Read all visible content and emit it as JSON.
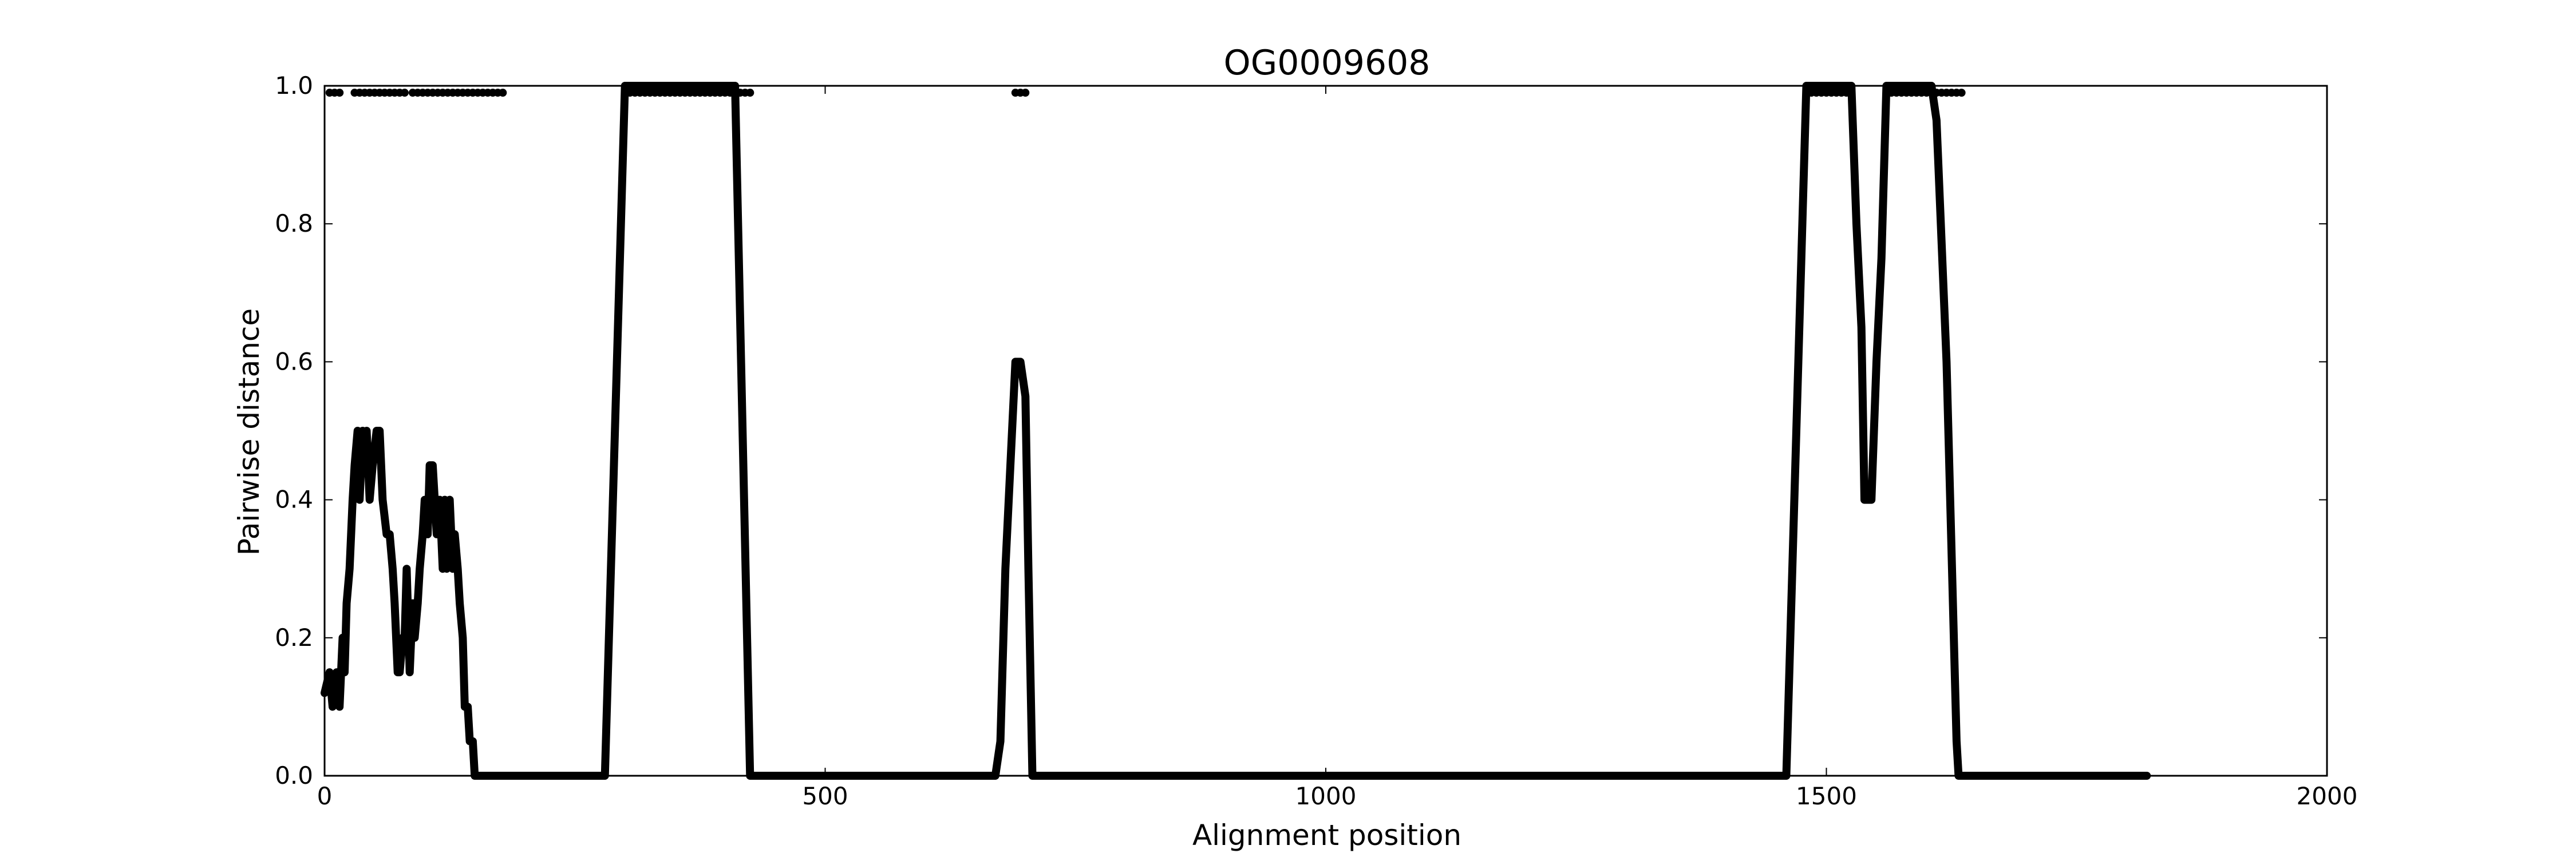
{
  "chart_data": {
    "type": "line",
    "title": "OG0009608",
    "xlabel": "Alignment position",
    "ylabel": "Pairwise distance",
    "xlim": [
      0,
      2000
    ],
    "ylim": [
      0,
      1.0
    ],
    "xticks": [
      0,
      500,
      1000,
      1500,
      2000
    ],
    "yticks": [
      0.0,
      0.2,
      0.4,
      0.6,
      0.8,
      1.0
    ],
    "xtick_labels": [
      "0",
      "500",
      "1000",
      "1500",
      "2000"
    ],
    "ytick_labels": [
      "0.0",
      "0.2",
      "0.4",
      "0.6",
      "0.8",
      "1.0"
    ],
    "grid": false,
    "legend": "none",
    "colors": {
      "line": "#000000",
      "points": "#000000",
      "axes": "#000000",
      "background": "#ffffff"
    },
    "series": [
      {
        "kind": "line",
        "x": [
          0,
          5,
          8,
          12,
          15,
          18,
          20,
          22,
          25,
          28,
          30,
          33,
          35,
          38,
          40,
          42,
          45,
          48,
          52,
          55,
          58,
          62,
          65,
          68,
          70,
          73,
          75,
          78,
          80,
          82,
          85,
          88,
          90,
          93,
          95,
          98,
          100,
          103,
          105,
          108,
          110,
          112,
          115,
          118,
          120,
          122,
          125,
          128,
          130,
          133,
          135,
          138,
          140,
          143,
          145,
          148,
          150,
          152,
          155,
          158,
          160,
          163,
          165,
          168,
          170,
          173,
          175,
          178,
          180,
          182,
          280,
          300,
          400,
          410,
          425,
          430,
          670,
          675,
          680,
          690,
          695,
          700,
          703,
          707,
          710,
          1460,
          1470,
          1480,
          1500,
          1520,
          1525,
          1530,
          1535,
          1538,
          1542,
          1545,
          1550,
          1555,
          1560,
          1600,
          1605,
          1610,
          1620,
          1630,
          1632,
          1635,
          1820
        ],
        "y": [
          0.12,
          0.15,
          0.1,
          0.15,
          0.1,
          0.2,
          0.15,
          0.25,
          0.3,
          0.4,
          0.45,
          0.5,
          0.4,
          0.5,
          0.45,
          0.5,
          0.4,
          0.45,
          0.5,
          0.5,
          0.4,
          0.35,
          0.35,
          0.3,
          0.25,
          0.15,
          0.15,
          0.2,
          0.2,
          0.3,
          0.15,
          0.25,
          0.2,
          0.25,
          0.3,
          0.35,
          0.4,
          0.35,
          0.45,
          0.45,
          0.4,
          0.35,
          0.4,
          0.3,
          0.4,
          0.3,
          0.4,
          0.3,
          0.35,
          0.3,
          0.25,
          0.2,
          0.1,
          0.1,
          0.05,
          0.05,
          0.0,
          0.0,
          0.0,
          0.0,
          0.0,
          0.0,
          0.0,
          0.0,
          0.0,
          0.0,
          0.0,
          0.0,
          0.0,
          0.0,
          0.0,
          1.0,
          1.0,
          1.0,
          0.0,
          0.0,
          0.0,
          0.05,
          0.3,
          0.6,
          0.6,
          0.55,
          0.3,
          0.0,
          0.0,
          0.0,
          0.5,
          1.0,
          1.0,
          1.0,
          1.0,
          0.8,
          0.65,
          0.4,
          0.4,
          0.4,
          0.6,
          0.75,
          1.0,
          1.0,
          1.0,
          0.95,
          0.6,
          0.05,
          0.0,
          0.0,
          0.0
        ]
      },
      {
        "kind": "scatter",
        "y": 0.99,
        "x": [
          5,
          10,
          15,
          30,
          35,
          40,
          45,
          50,
          55,
          60,
          65,
          70,
          75,
          80,
          88,
          93,
          98,
          103,
          108,
          113,
          118,
          123,
          128,
          133,
          138,
          143,
          148,
          153,
          158,
          163,
          168,
          173,
          178,
          300,
          305,
          310,
          315,
          320,
          325,
          330,
          335,
          340,
          345,
          350,
          355,
          360,
          365,
          370,
          375,
          380,
          385,
          390,
          395,
          400,
          405,
          410,
          415,
          420,
          425,
          690,
          695,
          700,
          1485,
          1490,
          1495,
          1500,
          1505,
          1510,
          1515,
          1520,
          1525,
          1560,
          1565,
          1570,
          1575,
          1580,
          1585,
          1590,
          1595,
          1600,
          1605,
          1610,
          1615,
          1620,
          1625,
          1630,
          1635
        ]
      }
    ]
  }
}
